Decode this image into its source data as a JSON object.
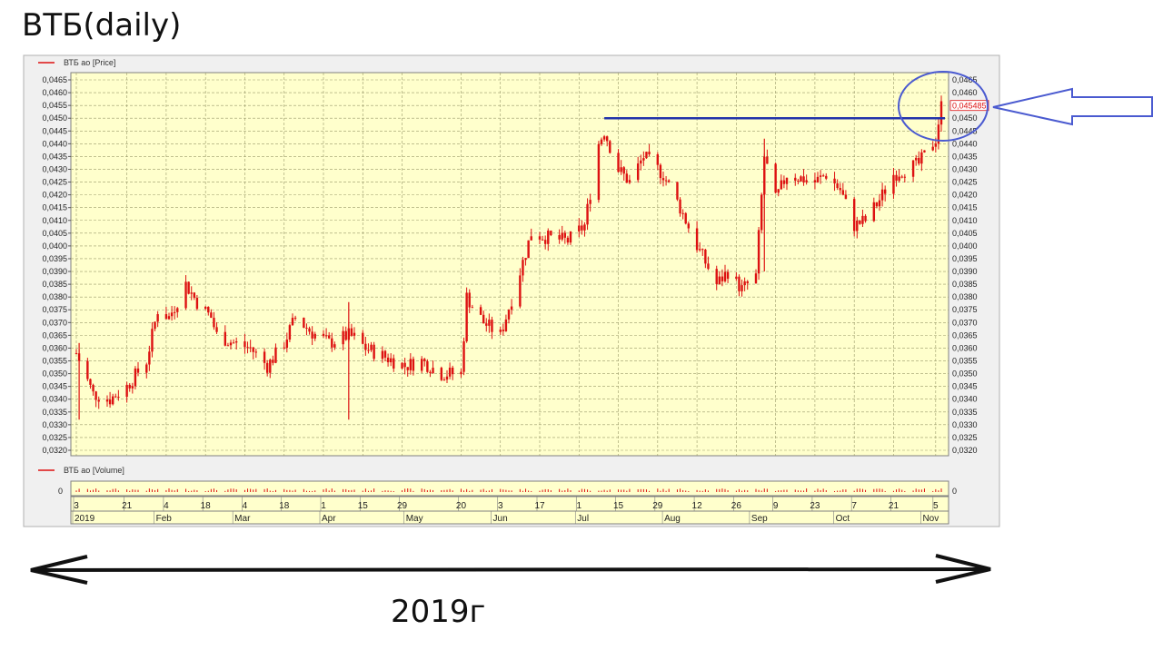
{
  "heading": "ВТБ(daily)",
  "caption": "2019г",
  "colors": {
    "panel_bg": "#ffffcc",
    "frame_bg": "#f0f0f0",
    "grid": "#9a9a6a",
    "candle": "#dd1111",
    "resistance": "#2233aa",
    "annotation": "#4a5ad0"
  },
  "chart_data": {
    "type": "candlestick",
    "legend_price": "ВТБ ао [Price]",
    "legend_volume": "ВТБ ао [Volume]",
    "volume_tick": "0",
    "last_price_label": "0,045485",
    "y_range": [
      0.032,
      0.0465
    ],
    "y_ticks": [
      "0,0465",
      "0,0460",
      "0,0455",
      "0,0450",
      "0,0445",
      "0,0440",
      "0,0435",
      "0,0430",
      "0,0425",
      "0,0420",
      "0,0415",
      "0,0410",
      "0,0405",
      "0,0400",
      "0,0395",
      "0,0390",
      "0,0385",
      "0,0380",
      "0,0375",
      "0,0370",
      "0,0365",
      "0,0360",
      "0,0355",
      "0,0350",
      "0,0345",
      "0,0340",
      "0,0335",
      "0,0330",
      "0,0325",
      "0,0320"
    ],
    "resistance_level": 0.045,
    "date_range": [
      "2019-01-03",
      "2019-11-07"
    ],
    "day_ticks": [
      {
        "date": "2019-01-03",
        "label": "3"
      },
      {
        "date": "2019-01-21",
        "label": "21"
      },
      {
        "date": "2019-02-04",
        "label": "4"
      },
      {
        "date": "2019-02-18",
        "label": "18"
      },
      {
        "date": "2019-03-04",
        "label": "4"
      },
      {
        "date": "2019-03-18",
        "label": "18"
      },
      {
        "date": "2019-04-01",
        "label": "1"
      },
      {
        "date": "2019-04-15",
        "label": "15"
      },
      {
        "date": "2019-04-29",
        "label": "29"
      },
      {
        "date": "2019-05-20",
        "label": "20"
      },
      {
        "date": "2019-06-03",
        "label": "3"
      },
      {
        "date": "2019-06-17",
        "label": "17"
      },
      {
        "date": "2019-07-01",
        "label": "1"
      },
      {
        "date": "2019-07-15",
        "label": "15"
      },
      {
        "date": "2019-07-29",
        "label": "29"
      },
      {
        "date": "2019-08-12",
        "label": "12"
      },
      {
        "date": "2019-08-26",
        "label": "26"
      },
      {
        "date": "2019-09-09",
        "label": "9"
      },
      {
        "date": "2019-09-23",
        "label": "23"
      },
      {
        "date": "2019-10-07",
        "label": "7"
      },
      {
        "date": "2019-10-21",
        "label": "21"
      },
      {
        "date": "2019-11-05",
        "label": "5"
      }
    ],
    "month_ticks": [
      {
        "date": "2019-01-03",
        "label": "2019"
      },
      {
        "date": "2019-02-01",
        "label": "Feb"
      },
      {
        "date": "2019-03-01",
        "label": "Mar"
      },
      {
        "date": "2019-04-01",
        "label": "Apr"
      },
      {
        "date": "2019-05-01",
        "label": "May"
      },
      {
        "date": "2019-06-01",
        "label": "Jun"
      },
      {
        "date": "2019-07-01",
        "label": "Jul"
      },
      {
        "date": "2019-08-01",
        "label": "Aug"
      },
      {
        "date": "2019-09-01",
        "label": "Sep"
      },
      {
        "date": "2019-10-01",
        "label": "Oct"
      },
      {
        "date": "2019-11-01",
        "label": "Nov"
      }
    ],
    "close_path": [
      [
        "2019-01-03",
        0.0358
      ],
      [
        "2019-01-09",
        0.0342
      ],
      [
        "2019-01-15",
        0.034
      ],
      [
        "2019-01-21",
        0.0345
      ],
      [
        "2019-01-28",
        0.0355
      ],
      [
        "2019-02-01",
        0.0375
      ],
      [
        "2019-02-05",
        0.0372
      ],
      [
        "2019-02-11",
        0.0385
      ],
      [
        "2019-02-15",
        0.0378
      ],
      [
        "2019-02-20",
        0.0372
      ],
      [
        "2019-02-22",
        0.0365
      ],
      [
        "2019-02-28",
        0.0362
      ],
      [
        "2019-03-06",
        0.036
      ],
      [
        "2019-03-12",
        0.0353
      ],
      [
        "2019-03-18",
        0.0362
      ],
      [
        "2019-03-22",
        0.0372
      ],
      [
        "2019-03-28",
        0.0366
      ],
      [
        "2019-04-03",
        0.0362
      ],
      [
        "2019-04-10",
        0.0365
      ],
      [
        "2019-04-12",
        0.0364
      ],
      [
        "2019-04-16",
        0.036
      ],
      [
        "2019-04-24",
        0.0356
      ],
      [
        "2019-04-30",
        0.0353
      ],
      [
        "2019-05-06",
        0.0355
      ],
      [
        "2019-05-13",
        0.035
      ],
      [
        "2019-05-20",
        0.035
      ],
      [
        "2019-05-22",
        0.038
      ],
      [
        "2019-05-28",
        0.037
      ],
      [
        "2019-06-03",
        0.0365
      ],
      [
        "2019-06-10",
        0.039
      ],
      [
        "2019-06-14",
        0.0405
      ],
      [
        "2019-06-21",
        0.0403
      ],
      [
        "2019-06-27",
        0.0402
      ],
      [
        "2019-07-03",
        0.0408
      ],
      [
        "2019-07-08",
        0.044
      ],
      [
        "2019-07-10",
        0.0445
      ],
      [
        "2019-07-15",
        0.043
      ],
      [
        "2019-07-19",
        0.0425
      ],
      [
        "2019-07-24",
        0.0435
      ],
      [
        "2019-07-31",
        0.0428
      ],
      [
        "2019-08-06",
        0.0415
      ],
      [
        "2019-08-12",
        0.04
      ],
      [
        "2019-08-19",
        0.0385
      ],
      [
        "2019-08-23",
        0.039
      ],
      [
        "2019-08-28",
        0.0383
      ],
      [
        "2019-09-02",
        0.0388
      ],
      [
        "2019-09-05",
        0.0435
      ],
      [
        "2019-09-09",
        0.0418
      ],
      [
        "2019-09-13",
        0.0428
      ],
      [
        "2019-09-23",
        0.0425
      ],
      [
        "2019-09-27",
        0.0428
      ],
      [
        "2019-10-02",
        0.0422
      ],
      [
        "2019-10-07",
        0.0408
      ],
      [
        "2019-10-11",
        0.041
      ],
      [
        "2019-10-16",
        0.0418
      ],
      [
        "2019-10-21",
        0.0428
      ],
      [
        "2019-10-25",
        0.043
      ],
      [
        "2019-10-30",
        0.0432
      ],
      [
        "2019-11-05",
        0.0442
      ],
      [
        "2019-11-07",
        0.04548
      ]
    ],
    "spikes": [
      {
        "date": "2019-04-10",
        "low": 0.0332,
        "high": 0.0378
      },
      {
        "date": "2019-01-04",
        "low": 0.0332,
        "high": 0.0362
      },
      {
        "date": "2019-09-05",
        "low": 0.039,
        "high": 0.0442
      }
    ]
  }
}
